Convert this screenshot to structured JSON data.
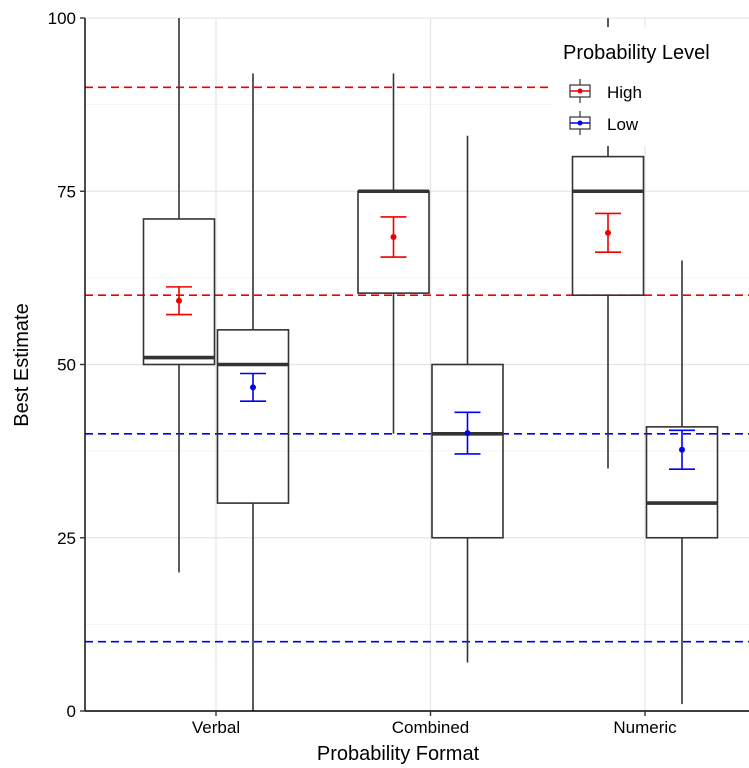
{
  "chart_data": {
    "type": "box",
    "title": "",
    "xlabel": "Probability Format",
    "ylabel": "Best Estimate",
    "ylim": [
      0,
      100
    ],
    "yticks": [
      0,
      25,
      50,
      75,
      100
    ],
    "ytick_labels": [
      "0",
      "25",
      "50",
      "75",
      "100"
    ],
    "categories": [
      "Verbal",
      "Combined",
      "Numeric"
    ],
    "grid": true,
    "legend": {
      "title": "Probability Level",
      "position": "top-right",
      "entries": [
        {
          "label": "High",
          "color": "#ee0000"
        },
        {
          "label": "Low",
          "color": "#0000ee"
        }
      ]
    },
    "series": [
      {
        "name": "High",
        "color": "#ee0000",
        "boxes": [
          {
            "category": "Verbal",
            "whisker_low": 20,
            "q1": 50,
            "median": 51,
            "q3": 71,
            "whisker_high": 100,
            "mean": 59.2,
            "ci_low": 57.2,
            "ci_high": 61.2
          },
          {
            "category": "Combined",
            "whisker_low": 40,
            "q1": 60.3,
            "median": 75,
            "q3": 75,
            "whisker_high": 92,
            "mean": 68.4,
            "ci_low": 65.5,
            "ci_high": 71.3
          },
          {
            "category": "Numeric",
            "whisker_low": 35,
            "q1": 60,
            "median": 75,
            "q3": 80,
            "whisker_high": 100,
            "mean": 69,
            "ci_low": 66.2,
            "ci_high": 71.8
          }
        ]
      },
      {
        "name": "Low",
        "color": "#0000ee",
        "boxes": [
          {
            "category": "Verbal",
            "whisker_low": 0,
            "q1": 30,
            "median": 50,
            "q3": 55,
            "whisker_high": 92,
            "mean": 46.7,
            "ci_low": 44.7,
            "ci_high": 48.7
          },
          {
            "category": "Combined",
            "whisker_low": 7,
            "q1": 25,
            "median": 40,
            "q3": 50,
            "whisker_high": 83,
            "mean": 40.1,
            "ci_low": 37.1,
            "ci_high": 43.1
          },
          {
            "category": "Numeric",
            "whisker_low": 1,
            "q1": 25,
            "median": 30,
            "q3": 41,
            "whisker_high": 65,
            "mean": 37.7,
            "ci_low": 34.9,
            "ci_high": 40.5
          }
        ]
      }
    ],
    "reference_lines": [
      {
        "y": 90,
        "color": "#ee0000",
        "style": "dashed"
      },
      {
        "y": 60,
        "color": "#ee0000",
        "style": "dashed"
      },
      {
        "y": 40,
        "color": "#0000ee",
        "style": "dashed"
      },
      {
        "y": 10,
        "color": "#0000ee",
        "style": "dashed"
      }
    ]
  }
}
